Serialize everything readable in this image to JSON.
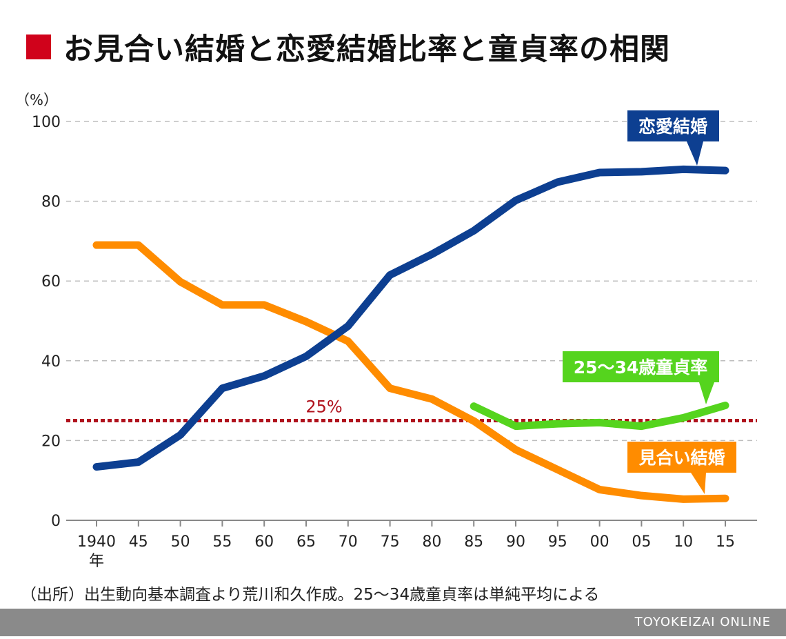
{
  "title": "お見合い結婚と恋愛結婚比率と童貞率の相関",
  "colors": {
    "title_mark": "#d0021b",
    "love": "#0d3f91",
    "arranged": "#ff8c00",
    "virgin": "#55d41e",
    "reference": "#b0121d",
    "grid": "#bdbdbd",
    "axis": "#888888",
    "footer": "#8a8a8a"
  },
  "chart_data": {
    "type": "line",
    "y_unit_label": "（%）",
    "ylim": [
      0,
      100
    ],
    "y_ticks": [
      0,
      20,
      40,
      60,
      80,
      100
    ],
    "grid": true,
    "x": [
      "1940",
      "45",
      "50",
      "55",
      "60",
      "65",
      "70",
      "75",
      "80",
      "85",
      "90",
      "95",
      "00",
      "05",
      "10",
      "15"
    ],
    "x_sub_label": "年",
    "series": [
      {
        "key": "love",
        "name": "恋愛結婚",
        "values": [
          13.4,
          14.6,
          21.4,
          33.1,
          36.2,
          41.1,
          48.7,
          61.5,
          66.7,
          72.6,
          80.2,
          84.8,
          87.2,
          87.4,
          88.0,
          87.7
        ]
      },
      {
        "key": "arranged",
        "name": "見合い結婚",
        "values": [
          69.0,
          69.0,
          59.8,
          54.0,
          54.0,
          49.8,
          44.9,
          33.1,
          30.4,
          24.9,
          17.7,
          12.7,
          7.7,
          6.2,
          5.3,
          5.5
        ]
      },
      {
        "key": "virgin",
        "name": "25〜34歳童貞率",
        "values": [
          null,
          null,
          null,
          null,
          null,
          null,
          null,
          null,
          null,
          28.6,
          23.6,
          24.2,
          24.5,
          23.6,
          25.7,
          28.8
        ]
      }
    ],
    "reference_line": {
      "value": 25,
      "label": "25%"
    }
  },
  "source_note": "（出所）出生動向基本調査より荒川和久作成。25〜34歳童貞率は単純平均による",
  "brand": "TOYOKEIZAI ONLINE"
}
